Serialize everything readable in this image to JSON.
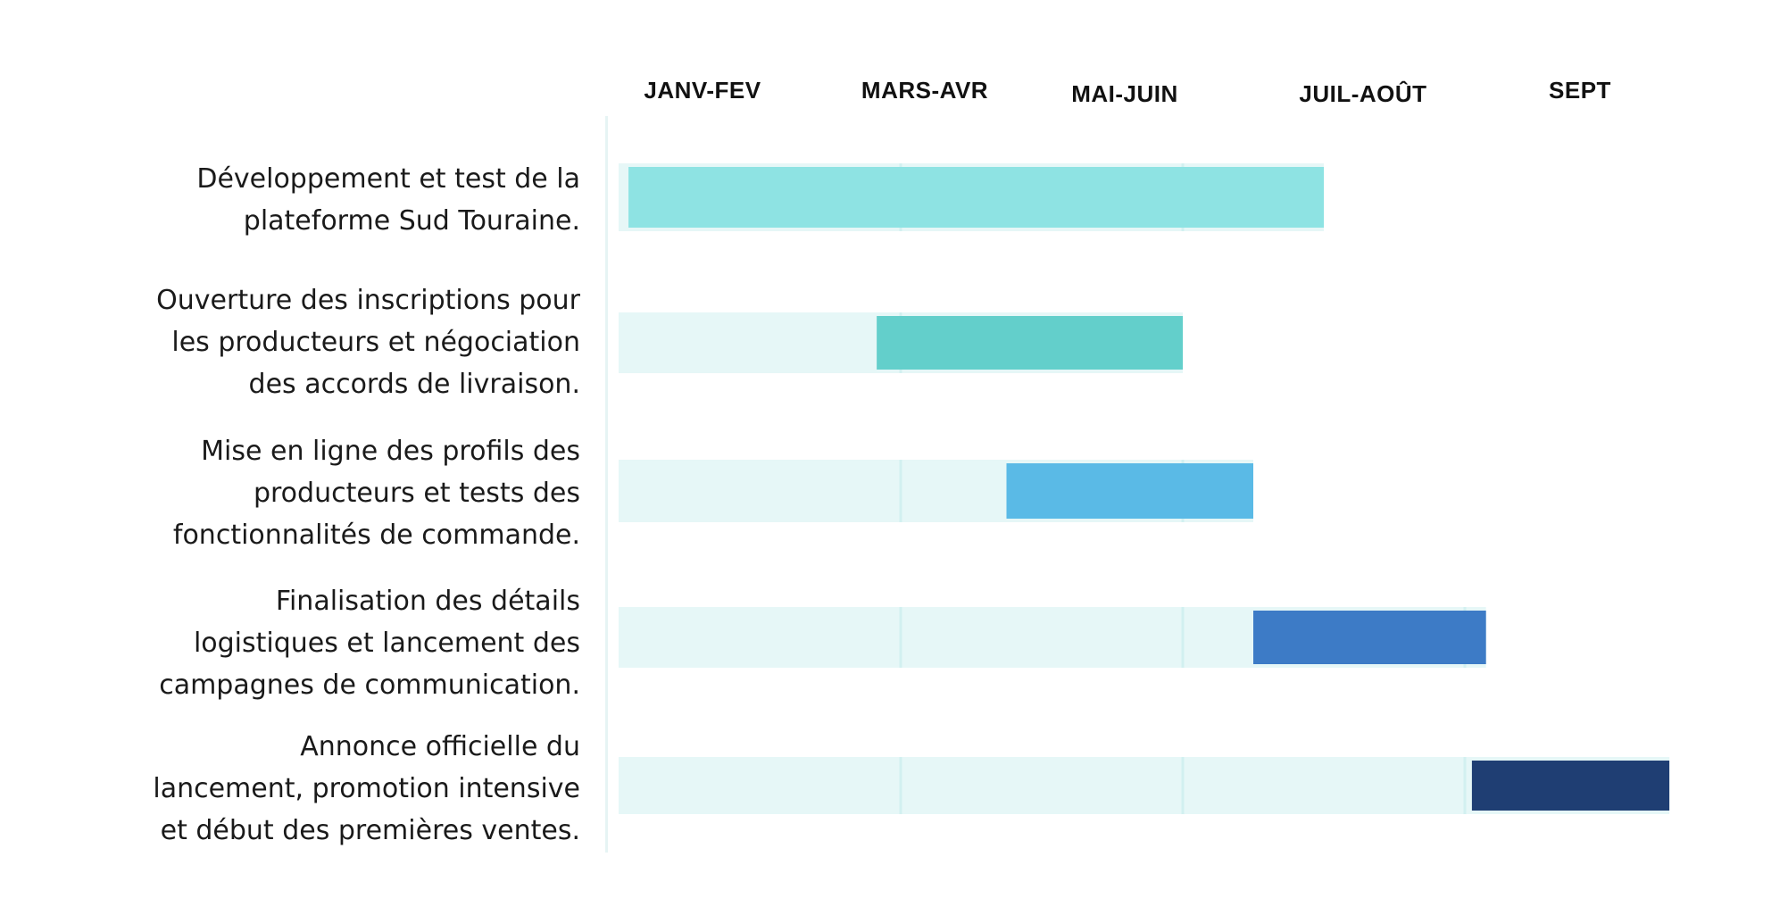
{
  "chart_data": {
    "type": "gantt",
    "periods": [
      "JANV-FEV",
      "MARS-AVR",
      "MAI-JUIN",
      "JUIL-AOÛT",
      "SEPT"
    ],
    "period_starts": [
      0,
      2,
      4,
      6,
      8
    ],
    "axis_range_months": [
      0,
      9.5
    ],
    "tasks": [
      {
        "label_lines": [
          "Développement et test de la",
          "plateforme Sud Touraine."
        ],
        "track_end": 5.0,
        "start": 0.07,
        "end": 5.0,
        "color": "#8EE3E3"
      },
      {
        "label_lines": [
          "Ouverture des inscriptions pour",
          "les producteurs et négociation",
          "des accords de livraison."
        ],
        "track_end": 4.0,
        "start": 1.83,
        "end": 4.0,
        "color": "#63CFCB"
      },
      {
        "label_lines": [
          "Mise en ligne des profils des",
          "producteurs et tests des",
          "fonctionnalités de commande."
        ],
        "track_end": 4.5,
        "start": 2.75,
        "end": 4.5,
        "color": "#5ABAE6"
      },
      {
        "label_lines": [
          "Finalisation des détails",
          "logistiques et lancement des",
          "campagnes de communication."
        ],
        "track_end": 6.15,
        "start": 4.5,
        "end": 6.15,
        "color": "#3D7BC6"
      },
      {
        "label_lines": [
          "Annonce officielle du",
          "lancement, promotion intensive",
          "et début des premières ventes."
        ],
        "track_end": 7.45,
        "start": 6.05,
        "end": 7.45,
        "color": "#1F3E73"
      }
    ],
    "track_color": "#E6F7F7",
    "divider_color": "#D2F0F0",
    "axis_line_color": "#E6F4F4",
    "grid": true,
    "legend": "none"
  }
}
